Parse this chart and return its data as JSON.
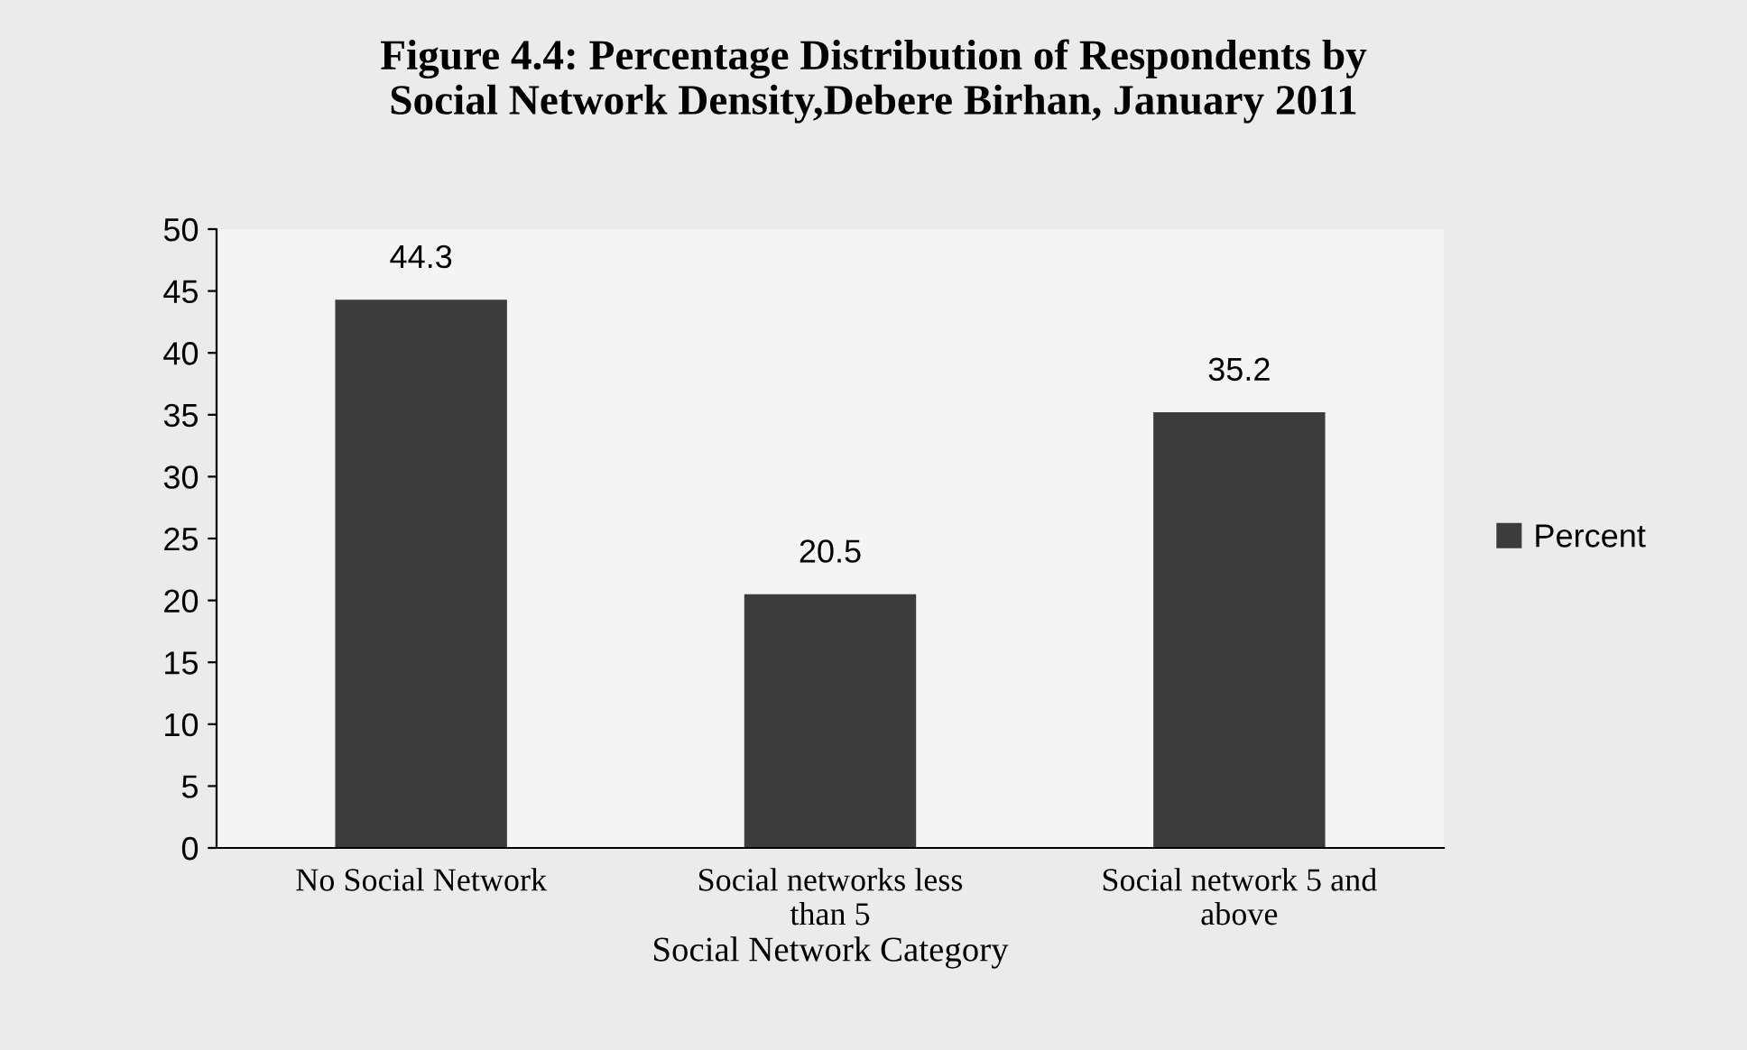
{
  "chart_data": {
    "type": "bar",
    "title": "Figure 4.4: Percentage Distribution of Respondents by\nSocial Network Density,Debere Birhan, January 2011",
    "xlabel": "Social Network Category",
    "categories": [
      "No Social Network",
      "Social networks less\nthan 5",
      "Social network 5 and\nabove"
    ],
    "series": [
      {
        "name": "Percent",
        "color": "#3c3c3c",
        "values": [
          44.3,
          20.5,
          35.2
        ]
      }
    ],
    "ylim": [
      0,
      50
    ],
    "yticks": [
      0,
      5,
      10,
      15,
      20,
      25,
      30,
      35,
      40,
      45,
      50
    ],
    "grid": false,
    "legend": "right",
    "data_labels": true
  }
}
